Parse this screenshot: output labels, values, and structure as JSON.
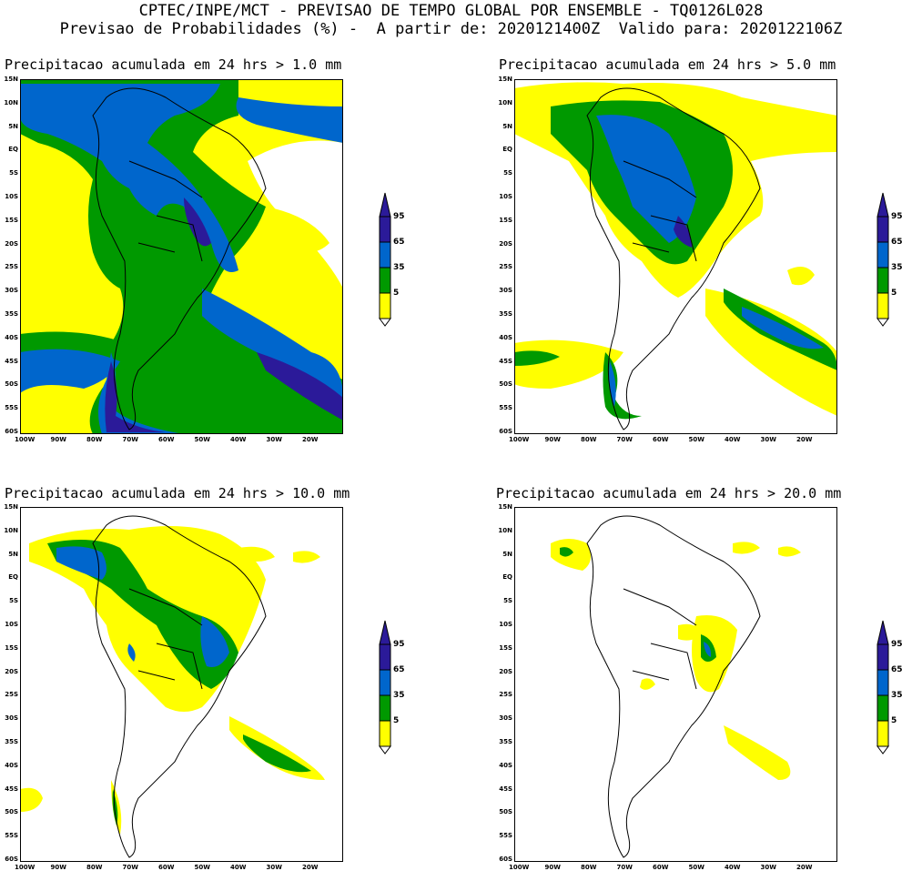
{
  "header": {
    "line1": "CPTEC/INPE/MCT - PREVISAO DE TEMPO GLOBAL POR ENSEMBLE - TQ0126L028",
    "line2": "Previsao de Probabilidades (%) -  A partir de: 2020121400Z  Valido para: 2020122106Z"
  },
  "lat_ticks": [
    "15N",
    "10N",
    "5N",
    "EQ",
    "5S",
    "10S",
    "15S",
    "20S",
    "25S",
    "30S",
    "35S",
    "40S",
    "45S",
    "50S",
    "55S",
    "60S"
  ],
  "lon_ticks": [
    "100W",
    "90W",
    "80W",
    "70W",
    "60W",
    "50W",
    "40W",
    "30W",
    "20W"
  ],
  "colors": {
    "c5": "#ffff00",
    "c35": "#009900",
    "c65": "#0066cc",
    "c95": "#2b1a99"
  },
  "colorbar": {
    "levels": [
      "95",
      "65",
      "35",
      "5"
    ]
  },
  "panels": [
    {
      "title": "Precipitacao acumulada em 24 hrs > 1.0 mm",
      "threshold_mm": 1.0
    },
    {
      "title": "Precipitacao acumulada em 24 hrs > 5.0 mm",
      "threshold_mm": 5.0
    },
    {
      "title": "Precipitacao acumulada em 24 hrs > 10.0 mm",
      "threshold_mm": 10.0
    },
    {
      "title": "Precipitacao acumulada em 24 hrs > 20.0 mm",
      "threshold_mm": 20.0
    }
  ]
}
